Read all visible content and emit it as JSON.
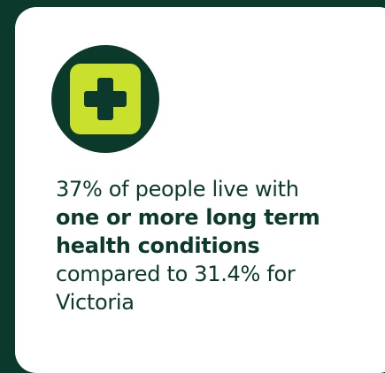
{
  "stat_card": {
    "icon": "health-plus-icon",
    "lines": [
      "37% of people live with",
      "one or more long term",
      "health conditions",
      "compared to 31.4% for",
      "Victoria"
    ]
  },
  "colors": {
    "background": "#0b3a2c",
    "card": "#ffffff",
    "icon_accent": "#c9e02d",
    "text": "#0b3a2c"
  }
}
